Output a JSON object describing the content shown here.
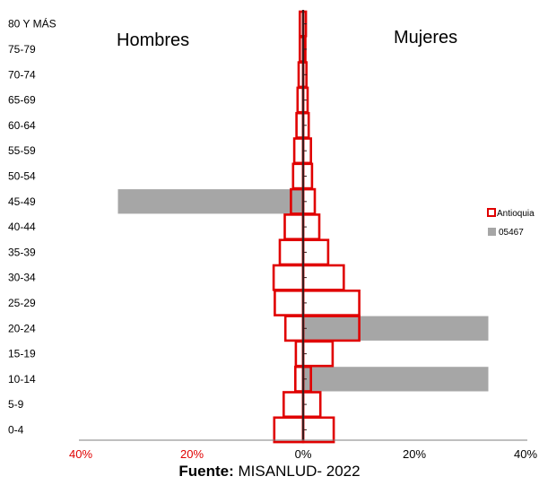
{
  "chart_data": {
    "type": "bar",
    "orientation": "horizontal",
    "layout": "population-pyramid",
    "categories": [
      "0-4",
      "5-9",
      "10-14",
      "15-19",
      "20-24",
      "25-29",
      "30-34",
      "35-39",
      "40-44",
      "45-49",
      "50-54",
      "55-59",
      "60-64",
      "65-69",
      "70-74",
      "75-79",
      "80 Y MÁS"
    ],
    "left_label": "Hombres",
    "right_label": "Mujeres",
    "xlim": [
      -40,
      40
    ],
    "x_ticks": [
      {
        "value": -40,
        "label": "40%",
        "color": "#e00000"
      },
      {
        "value": -20,
        "label": "20%",
        "color": "#e00000"
      },
      {
        "value": 0,
        "label": "0%",
        "color": "#000000"
      },
      {
        "value": 20,
        "label": "20%",
        "color": "#000000"
      },
      {
        "value": 40,
        "label": "40%",
        "color": "#000000"
      }
    ],
    "series": [
      {
        "name": "05467",
        "style": "filled",
        "color": "#a6a6a6",
        "male": [
          0,
          0,
          0,
          0,
          0,
          0,
          0,
          0,
          0,
          33.3,
          0,
          0,
          0,
          0,
          0,
          0,
          0
        ],
        "female": [
          0,
          0,
          33.3,
          0,
          33.3,
          0,
          0,
          0,
          0,
          0,
          0,
          0,
          0,
          0,
          0,
          0,
          0
        ]
      },
      {
        "name": "Antioquia",
        "style": "outline",
        "color": "#e00000",
        "male": [
          5.2,
          3.5,
          1.4,
          1.3,
          3.2,
          5.1,
          5.3,
          4.2,
          3.3,
          2.2,
          1.8,
          1.6,
          1.2,
          1.0,
          0.8,
          0.6,
          0.6
        ],
        "female": [
          5.5,
          3.1,
          1.4,
          5.3,
          10.1,
          10.1,
          7.3,
          4.5,
          2.9,
          2.1,
          1.6,
          1.4,
          1.0,
          0.8,
          0.6,
          0.4,
          0.5
        ]
      }
    ],
    "legend": "right"
  },
  "caption": {
    "bold": "Fuente:",
    "text": " MISANLUD- 2022"
  }
}
